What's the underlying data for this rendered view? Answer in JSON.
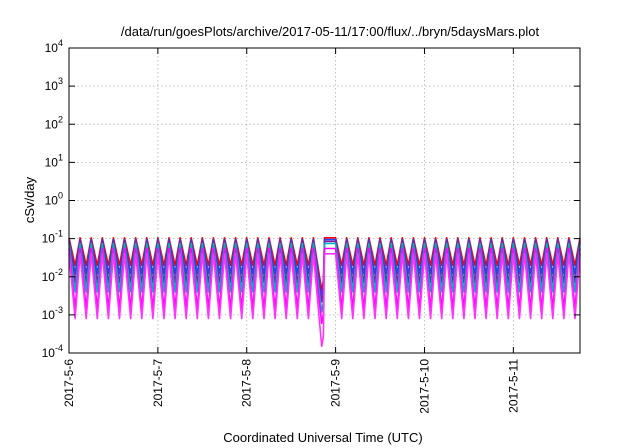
{
  "chart_data": {
    "type": "line",
    "title": "/data/run/goesPlots/archive/2017-05-11/17:00/flux/../bryn/5daysMars.plot",
    "xlabel": "Coordinated Universal Time (UTC)",
    "ylabel": "cSv/day",
    "y_scale": "log",
    "ylim": [
      0.0001,
      10000
    ],
    "xlim": [
      "2017-05-06T00:00",
      "2017-05-11T18:00"
    ],
    "grid": true,
    "x_ticks": [
      "2017-5-6",
      "2017-5-7",
      "2017-5-8",
      "2017-5-9",
      "2017-5-10",
      "2017-5-11"
    ],
    "y_ticks": [
      {
        "base": "10",
        "exp": "-4",
        "value": 0.0001
      },
      {
        "base": "10",
        "exp": "-3",
        "value": 0.001
      },
      {
        "base": "10",
        "exp": "-2",
        "value": 0.01
      },
      {
        "base": "10",
        "exp": "-1",
        "value": 0.1
      },
      {
        "base": "10",
        "exp": "0",
        "value": 1
      },
      {
        "base": "10",
        "exp": "1",
        "value": 10
      },
      {
        "base": "10",
        "exp": "2",
        "value": 100
      },
      {
        "base": "10",
        "exp": "3",
        "value": 1000
      },
      {
        "base": "10",
        "exp": "4",
        "value": 10000
      }
    ],
    "pattern": {
      "period_hours": 3,
      "gap_start": "2017-05-08T18:00",
      "gap_end": "2017-05-08T21:00",
      "gap_min": [
        0.0045,
        0.003,
        0.0022,
        0.0012,
        0.0006,
        0.00015
      ]
    },
    "series": [
      {
        "color": "#ff0000",
        "peak": 0.105,
        "trough": 0.02
      },
      {
        "color": "#2244ff",
        "peak": 0.095,
        "trough": 0.012
      },
      {
        "color": "#7a1fa2",
        "peak": 0.085,
        "trough": 0.007
      },
      {
        "color": "#00b0c0",
        "peak": 0.075,
        "trough": 0.004
      },
      {
        "color": "#ff00ff",
        "peak": 0.055,
        "trough": 0.0015
      },
      {
        "color": "#ff33ff",
        "peak": 0.04,
        "trough": 0.0008
      }
    ]
  }
}
